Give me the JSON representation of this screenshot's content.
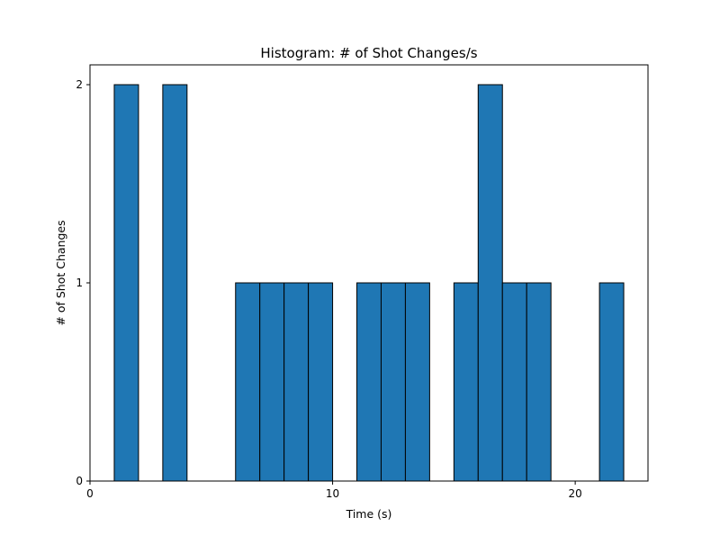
{
  "chart_data": {
    "type": "bar",
    "title": "Histogram: # of Shot Changes/s",
    "xlabel": "Time (s)",
    "ylabel": "# of Shot Changes",
    "xlim": [
      0,
      23
    ],
    "ylim": [
      0,
      2.1
    ],
    "x_ticks": [
      0,
      10,
      20
    ],
    "y_ticks": [
      0,
      1,
      2
    ],
    "bin_width": 1,
    "bins": [
      {
        "x": 1,
        "count": 2
      },
      {
        "x": 3,
        "count": 2
      },
      {
        "x": 6,
        "count": 1
      },
      {
        "x": 7,
        "count": 1
      },
      {
        "x": 8,
        "count": 1
      },
      {
        "x": 9,
        "count": 1
      },
      {
        "x": 11,
        "count": 1
      },
      {
        "x": 12,
        "count": 1
      },
      {
        "x": 13,
        "count": 1
      },
      {
        "x": 15,
        "count": 1
      },
      {
        "x": 16,
        "count": 2
      },
      {
        "x": 17,
        "count": 1
      },
      {
        "x": 18,
        "count": 1
      },
      {
        "x": 21,
        "count": 1
      }
    ],
    "grid": false,
    "legend": "none",
    "bar_color": "#1f77b4",
    "edge_color": "#000000"
  }
}
